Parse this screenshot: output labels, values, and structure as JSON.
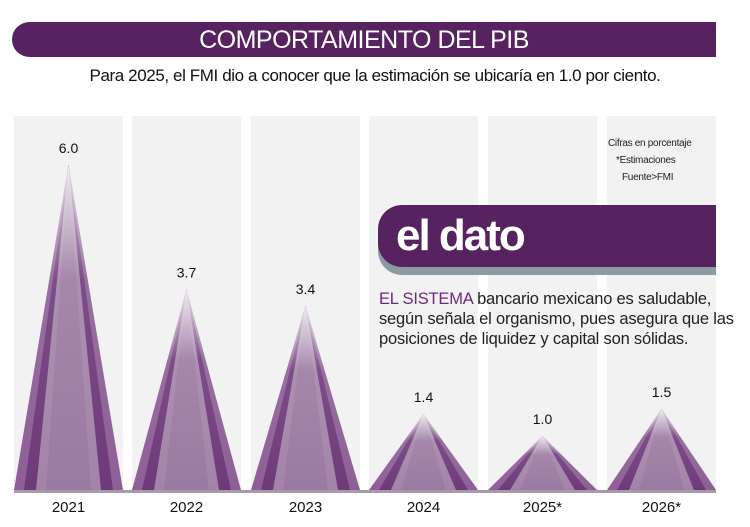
{
  "header": {
    "title": "COMPORTAMIENTO DEL PIB",
    "subtitle": "Para 2025, el FMI dio a conocer que la estimación se ubicaría en 1.0 por ciento."
  },
  "notes": {
    "units": "Cifras en porcentaje",
    "estimates": "*Estimaciones",
    "source": "Fuente>FMI"
  },
  "callout": {
    "title": "el dato",
    "highlight": "EL SISTEMA",
    "text": " bancario mexicano es saludable, según señala el organismo, pues asegura que las posiciones de liquidez y capital son sólidas."
  },
  "colors": {
    "brand": "#562260",
    "column_bg": "#f2f2f2",
    "shadow": "#8d9aa2"
  },
  "chart_data": {
    "type": "bar",
    "title": "COMPORTAMIENTO DEL PIB",
    "categories": [
      "2021",
      "2022",
      "2023",
      "2024",
      "2025*",
      "2026*"
    ],
    "values": [
      6.0,
      3.7,
      3.4,
      1.4,
      1.0,
      1.5
    ],
    "labels": [
      "6.0",
      "3.7",
      "3.4",
      "1.4",
      "1.0",
      "1.5"
    ],
    "xlabel": "",
    "ylabel": "",
    "ylim": [
      0,
      6
    ],
    "grid": false
  }
}
